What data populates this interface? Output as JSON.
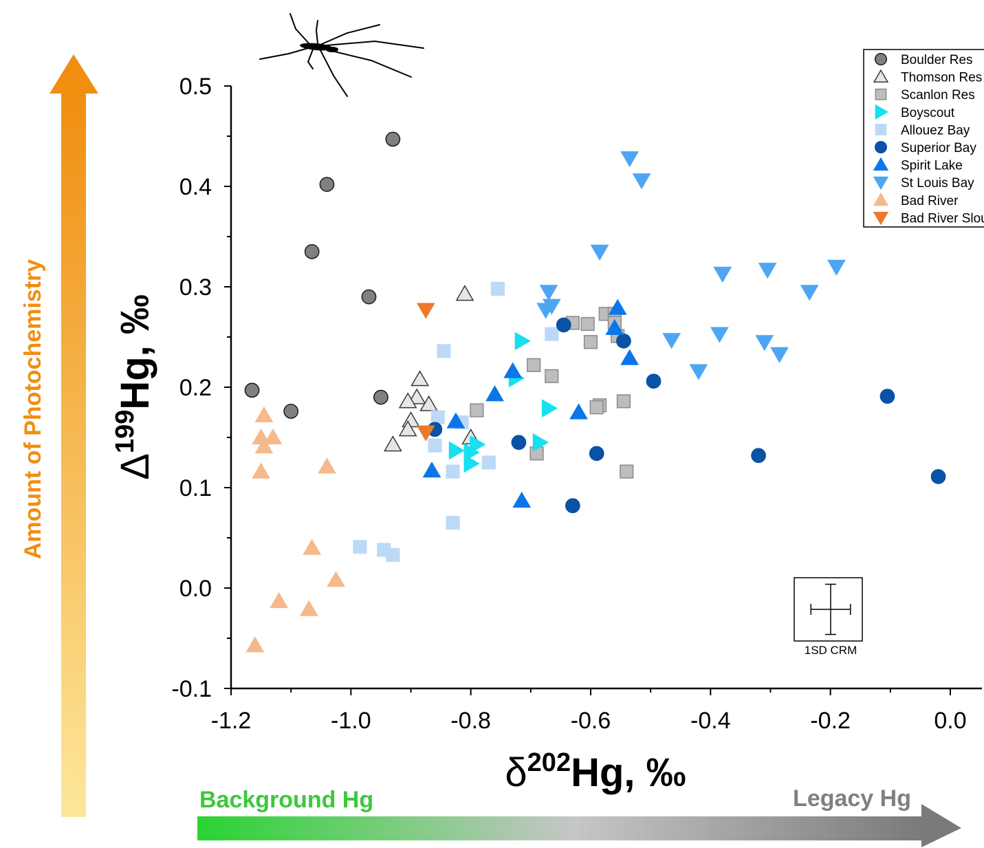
{
  "chart_data": {
    "type": "scatter",
    "title": "",
    "xlabel": {
      "base": "δ",
      "sup": "202",
      "rest": "Hg, ‰"
    },
    "ylabel": {
      "base": "Δ",
      "sup": "199",
      "rest": "Hg, ‰"
    },
    "xlim": [
      -1.2,
      0.0
    ],
    "ylim": [
      -0.1,
      0.5
    ],
    "x_ticks": [
      "-1.2",
      "-1.0",
      "-0.8",
      "-0.6",
      "-0.4",
      "-0.2",
      "0.0"
    ],
    "y_ticks": [
      "-0.1",
      "0.0",
      "0.1",
      "0.2",
      "0.3",
      "0.4",
      "0.5"
    ],
    "grid": false,
    "legend_position": "top-right",
    "annotations": {
      "y_arrow_label": "Amount of Photochemistry",
      "x_arrow_left_label": "Background Hg",
      "x_arrow_right_label": "Legacy Hg",
      "error_box_label": "1SD CRM"
    },
    "error_bar": {
      "x_sd": 0.033,
      "y_sd": 0.025
    },
    "series": [
      {
        "name": "Boulder Res",
        "marker": "circle",
        "color": "#808080",
        "stroke": "#1a1a1a",
        "x": [
          -0.93,
          -1.04,
          -1.065,
          -0.97,
          -1.165,
          -1.1,
          -0.95
        ],
        "y": [
          0.447,
          0.402,
          0.335,
          0.29,
          0.197,
          0.176,
          0.19
        ]
      },
      {
        "name": "Thomson Res",
        "marker": "triangle-up",
        "color": "#e6e6e6",
        "stroke": "#3a3a3a",
        "x": [
          -0.81,
          -0.885,
          -0.89,
          -0.905,
          -0.87,
          -0.9,
          -0.905,
          -0.93,
          -0.8
        ],
        "y": [
          0.293,
          0.208,
          0.19,
          0.186,
          0.183,
          0.167,
          0.158,
          0.143,
          0.15
        ]
      },
      {
        "name": "Scanlon Res",
        "marker": "square",
        "color": "#bdbdbd",
        "stroke": "#8a8a8a",
        "x": [
          -0.63,
          -0.605,
          -0.575,
          -0.56,
          -0.56,
          -0.555,
          -0.6,
          -0.695,
          -0.665,
          -0.545,
          -0.585,
          -0.59,
          -0.79,
          -0.69,
          -0.54
        ],
        "y": [
          0.264,
          0.263,
          0.273,
          0.273,
          0.264,
          0.251,
          0.245,
          0.222,
          0.211,
          0.186,
          0.182,
          0.18,
          0.177,
          0.134,
          0.116
        ]
      },
      {
        "name": "Boyscout",
        "marker": "triangle-right",
        "color": "#17e0f0",
        "stroke": "#17e0f0",
        "x": [
          -0.715,
          -0.725,
          -0.67,
          -0.685,
          -0.825,
          -0.79,
          -0.8,
          -0.8
        ],
        "y": [
          0.246,
          0.209,
          0.179,
          0.145,
          0.137,
          0.143,
          0.135,
          0.124
        ]
      },
      {
        "name": "Allouez Bay",
        "marker": "square",
        "color": "#bcdaf7",
        "stroke": "#bcdaf7",
        "x": [
          -0.755,
          -0.665,
          -0.845,
          -0.855,
          -0.815,
          -0.86,
          -0.83,
          -0.77,
          -0.83,
          -0.985,
          -0.945,
          -0.93
        ],
        "y": [
          0.298,
          0.253,
          0.236,
          0.17,
          0.165,
          0.142,
          0.116,
          0.125,
          0.065,
          0.041,
          0.038,
          0.033
        ]
      },
      {
        "name": "Superior Bay",
        "marker": "circle",
        "color": "#0a52a6",
        "stroke": "#0a52a6",
        "x": [
          -0.645,
          -0.545,
          -0.495,
          -0.105,
          -0.86,
          -0.72,
          -0.59,
          -0.32,
          -0.63,
          -0.02
        ],
        "y": [
          0.262,
          0.246,
          0.206,
          0.191,
          0.158,
          0.145,
          0.134,
          0.132,
          0.082,
          0.111
        ]
      },
      {
        "name": "Spirit Lake",
        "marker": "triangle-up",
        "color": "#0a76ea",
        "stroke": "#0a76ea",
        "x": [
          -0.555,
          -0.56,
          -0.535,
          -0.73,
          -0.76,
          -0.62,
          -0.825,
          -0.865,
          -0.715
        ],
        "y": [
          0.279,
          0.259,
          0.229,
          0.216,
          0.193,
          0.175,
          0.166,
          0.117,
          0.087
        ]
      },
      {
        "name": "St Louis Bay",
        "marker": "triangle-down",
        "color": "#4ea6f2",
        "stroke": "#4ea6f2",
        "x": [
          -0.535,
          -0.515,
          -0.585,
          -0.38,
          -0.305,
          -0.19,
          -0.235,
          -0.67,
          -0.665,
          -0.675,
          -0.465,
          -0.385,
          -0.31,
          -0.285,
          -0.42
        ],
        "y": [
          0.428,
          0.406,
          0.335,
          0.313,
          0.317,
          0.32,
          0.295,
          0.295,
          0.281,
          0.277,
          0.247,
          0.253,
          0.245,
          0.233,
          0.216
        ]
      },
      {
        "name": "Bad River",
        "marker": "triangle-up",
        "color": "#f5b98e",
        "stroke": "#f5b98e",
        "x": [
          -1.145,
          -1.15,
          -1.13,
          -1.145,
          -1.04,
          -1.15,
          -1.065,
          -1.025,
          -1.12,
          -1.07,
          -1.16
        ],
        "y": [
          0.172,
          0.15,
          0.15,
          0.141,
          0.121,
          0.116,
          0.04,
          0.008,
          -0.013,
          -0.021,
          -0.057
        ]
      },
      {
        "name": "Bad River Slough",
        "marker": "triangle-down",
        "color": "#ea7a2a",
        "stroke": "#ea7a2a",
        "x": [
          -0.875,
          -0.875
        ],
        "y": [
          0.277,
          0.155
        ]
      }
    ]
  }
}
